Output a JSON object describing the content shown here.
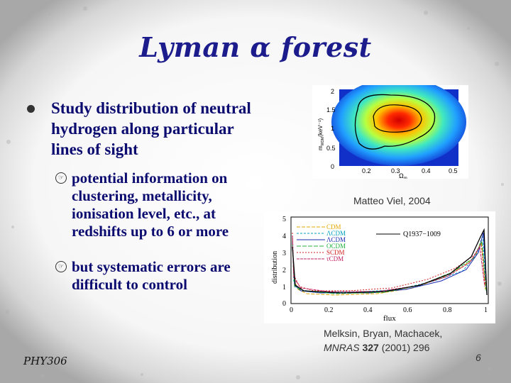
{
  "slide": {
    "title": "Lyman α forest",
    "bullet": "Study distribution of neutral hydrogen along particular lines of sight",
    "subbullets": [
      "potential information on clustering, metallicity, ionisation level, etc., at redshifts up to 6 or more",
      "but systematic errors are difficult to control"
    ],
    "credit1": "Matteo Viel, 2004",
    "credit2_line1": "Melksin, Bryan, Machacek,",
    "credit2_journal": "MNRAS",
    "credit2_volume": "327",
    "credit2_rest": "(2001) 296",
    "footer": "PHY306",
    "page": "6"
  },
  "figure1": {
    "ylabel": "m",
    "ylabel_sub": "WDM",
    "ylabel_unit": "(keV⁻¹)",
    "xlabel": "Ω",
    "xlabel_sub": "m",
    "yticks": [
      "2",
      "1.5",
      "1",
      "0.5",
      "0"
    ],
    "xticks": [
      "0.2",
      "0.3",
      "0.4",
      "0.5"
    ]
  },
  "figure2": {
    "xlabel": "flux",
    "ylabel": "distribution",
    "yticks": [
      "5",
      "4",
      "3",
      "2",
      "1",
      "0"
    ],
    "xticks": [
      "0",
      "0.2",
      "0.4",
      "0.6",
      "0.8",
      "1"
    ],
    "legend": [
      "CDM",
      "ΛCDM",
      "ΛCDM",
      "OCDM",
      "SCDM",
      "τCDM"
    ],
    "data_label": "Q1937−1009",
    "colors": [
      "#e6a800",
      "#00a0c0",
      "#1a2ab0",
      "#20b040",
      "#d02020",
      "#c02060",
      "#000000"
    ]
  }
}
